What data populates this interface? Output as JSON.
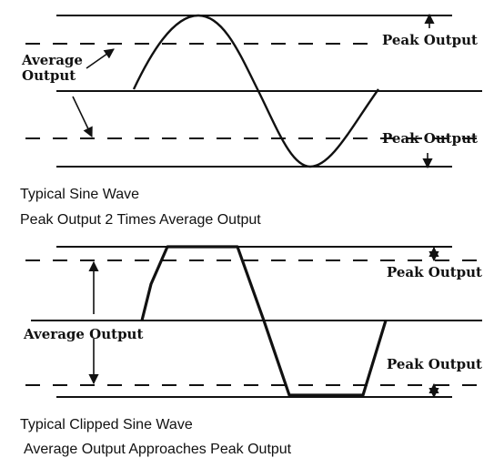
{
  "colors": {
    "ink": "#111111",
    "background": "#ffffff"
  },
  "top_diagram": {
    "label_average_output_line1": "Average",
    "label_average_output_line2": "Output",
    "label_peak_output_upper": "Peak Output",
    "label_peak_output_lower": "Peak Output",
    "caption_line1": "Typical Sine Wave",
    "caption_line2": "Peak Output 2 Times Average Output"
  },
  "bottom_diagram": {
    "label_peak_output_upper": "Peak Output",
    "label_average_output": "Average Output",
    "label_peak_output_lower": "Peak Output",
    "caption_line1": "Typical Clipped Sine Wave",
    "caption_line2": "Average Output Approaches Peak Output"
  }
}
